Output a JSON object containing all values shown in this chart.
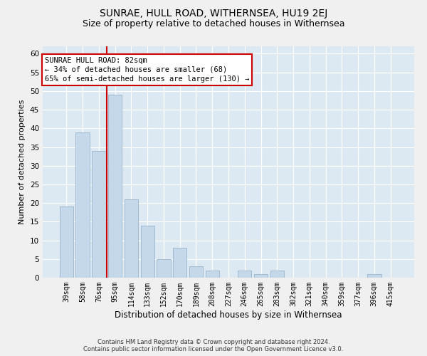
{
  "title": "SUNRAE, HULL ROAD, WITHERNSEA, HU19 2EJ",
  "subtitle": "Size of property relative to detached houses in Withernsea",
  "xlabel": "Distribution of detached houses by size in Withernsea",
  "ylabel": "Number of detached properties",
  "categories": [
    "39sqm",
    "58sqm",
    "76sqm",
    "95sqm",
    "114sqm",
    "133sqm",
    "152sqm",
    "170sqm",
    "189sqm",
    "208sqm",
    "227sqm",
    "246sqm",
    "265sqm",
    "283sqm",
    "302sqm",
    "321sqm",
    "340sqm",
    "359sqm",
    "377sqm",
    "396sqm",
    "415sqm"
  ],
  "values": [
    19,
    39,
    34,
    49,
    21,
    14,
    5,
    8,
    3,
    2,
    0,
    2,
    1,
    2,
    0,
    0,
    0,
    0,
    0,
    1,
    0
  ],
  "bar_color": "#c5d8ea",
  "bar_edge_color": "#9ab5cc",
  "vline_color": "#cc0000",
  "vline_position": 2.5,
  "ylim": [
    0,
    62
  ],
  "yticks": [
    0,
    5,
    10,
    15,
    20,
    25,
    30,
    35,
    40,
    45,
    50,
    55,
    60
  ],
  "annotation_title": "SUNRAE HULL ROAD: 82sqm",
  "annotation_line1": "← 34% of detached houses are smaller (68)",
  "annotation_line2": "65% of semi-detached houses are larger (130) →",
  "footer1": "Contains HM Land Registry data © Crown copyright and database right 2024.",
  "footer2": "Contains public sector information licensed under the Open Government Licence v3.0.",
  "bg_color": "#dce8f2",
  "grid_color": "#ffffff",
  "fig_bg": "#f0f0f0",
  "title_fontsize": 10,
  "subtitle_fontsize": 9,
  "annot_fontsize": 7.5,
  "ylabel_fontsize": 8,
  "xlabel_fontsize": 8.5,
  "tick_fontsize": 7,
  "footer_fontsize": 6
}
